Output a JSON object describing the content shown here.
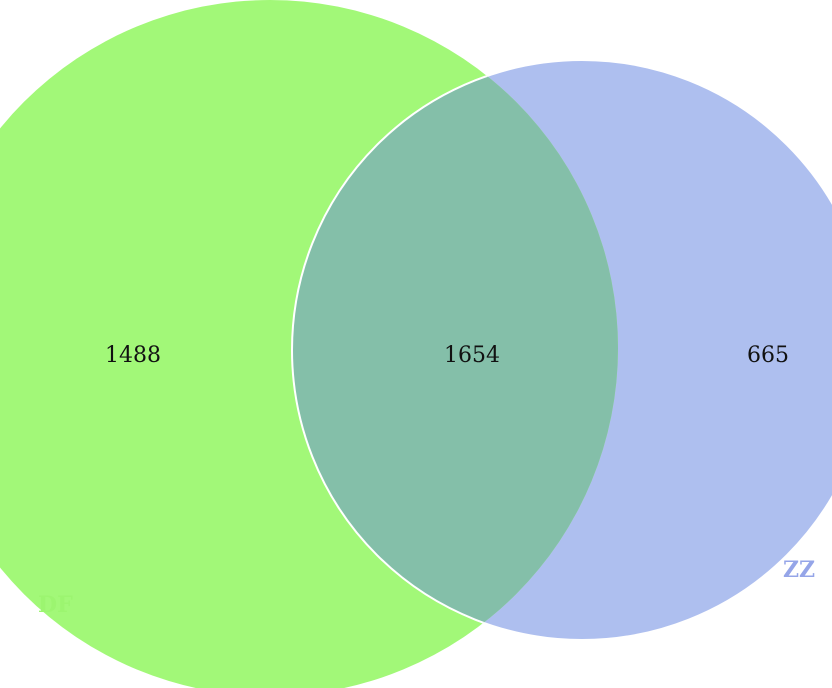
{
  "venn": {
    "sets": [
      {
        "key": "df",
        "label": "DF",
        "only_count": "1488",
        "fill": "#a2f878",
        "label_color": "#9cf570"
      },
      {
        "key": "zz",
        "label": "ZZ",
        "only_count": "665",
        "fill": "#aebfef",
        "label_color": "#95a5e8"
      }
    ],
    "intersection": {
      "count": "1654",
      "fill": "#84bfa9"
    },
    "outline_color": "#ffffff"
  }
}
